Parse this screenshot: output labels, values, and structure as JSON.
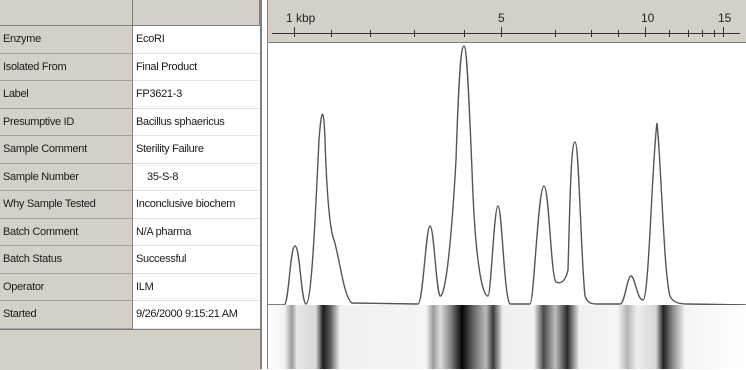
{
  "properties": [
    {
      "label": "Enzyme",
      "value": "EcoRI"
    },
    {
      "label": "Isolated From",
      "value": "Final Product"
    },
    {
      "label": "Label",
      "value": "FP3621-3"
    },
    {
      "label": "Presumptive ID",
      "value": "Bacillus sphaericus"
    },
    {
      "label": "Sample Comment",
      "value": "Sterility Failure"
    },
    {
      "label": "Sample Number",
      "value": "35-S-8"
    },
    {
      "label": "Why Sample Tested",
      "value": "Inconclusive biochem"
    },
    {
      "label": "Batch Comment",
      "value": "N/A pharma"
    },
    {
      "label": "Batch Status",
      "value": "Successful"
    },
    {
      "label": "Operator",
      "value": "ILM"
    },
    {
      "label": "Started",
      "value": "9/26/2000 9:15:21 AM"
    }
  ],
  "ruler": {
    "labels": [
      "1 kbp",
      "5",
      "10",
      "15"
    ]
  }
}
